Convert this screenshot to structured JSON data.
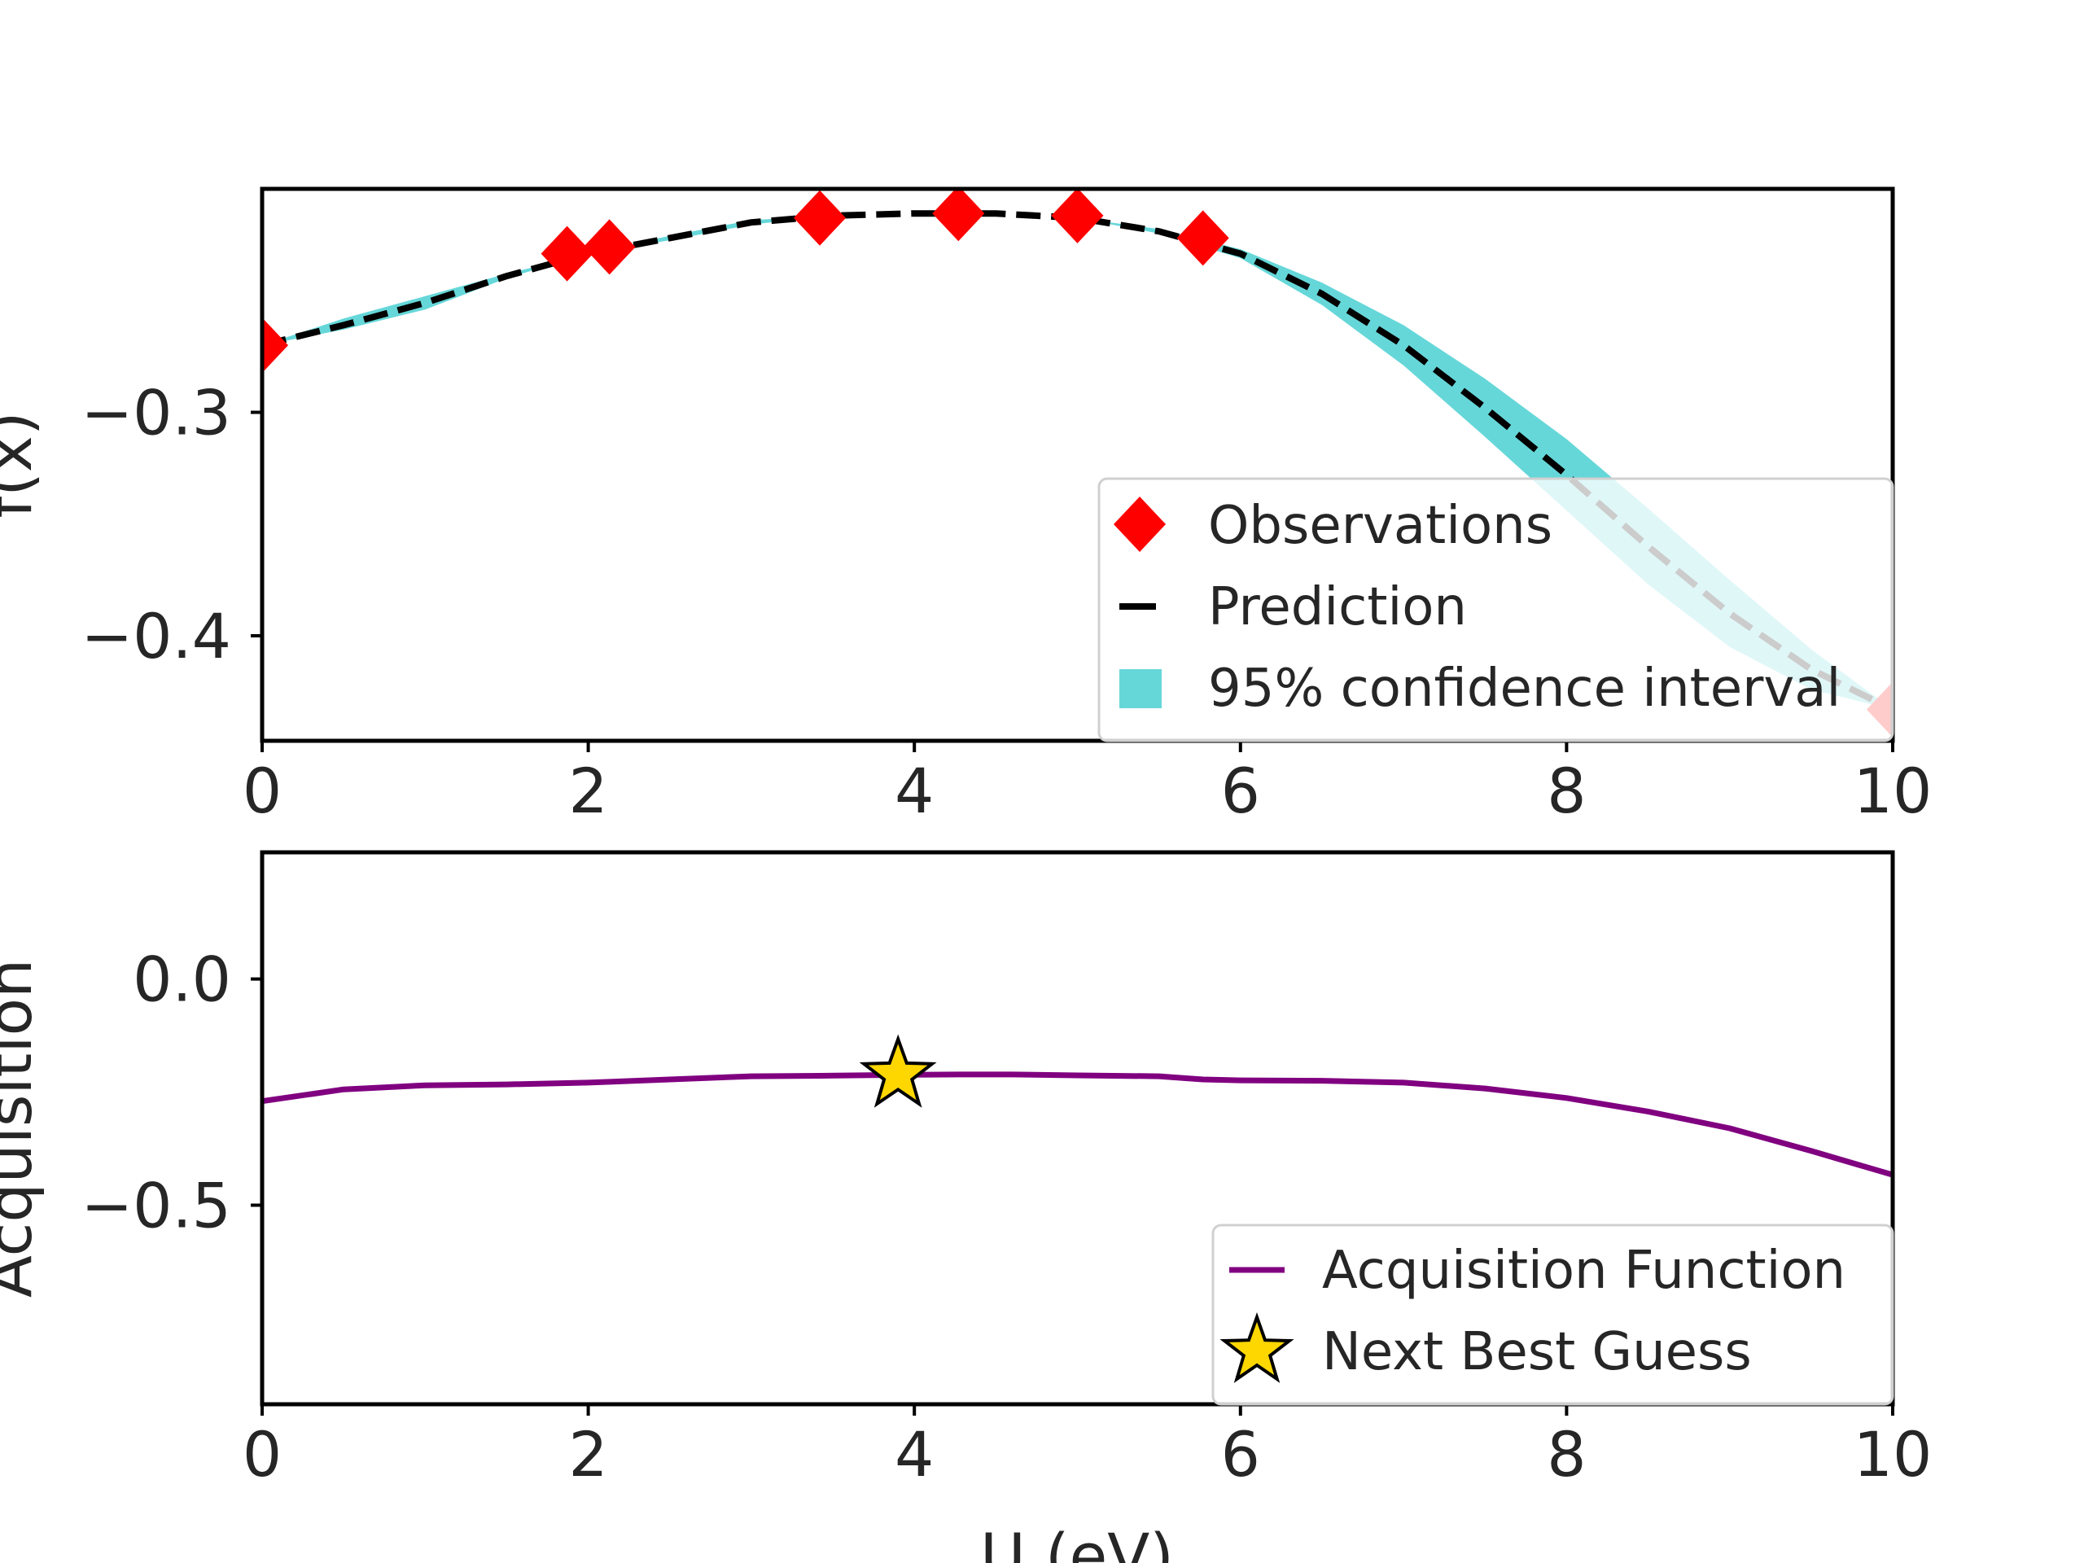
{
  "chart_data": [
    {
      "type": "line",
      "panel": "top",
      "ylabel": "f(x)",
      "xlim": [
        0,
        10
      ],
      "ylim": [
        -0.447,
        -0.2
      ],
      "xticks": [
        {
          "value": 0,
          "label": "0"
        },
        {
          "value": 2,
          "label": "2"
        },
        {
          "value": 4,
          "label": "4"
        },
        {
          "value": 6,
          "label": "6"
        },
        {
          "value": 8,
          "label": "8"
        },
        {
          "value": 10,
          "label": "10"
        }
      ],
      "yticks": [
        {
          "value": -0.3,
          "label": "−0.3"
        },
        {
          "value": -0.4,
          "label": "−0.4"
        }
      ],
      "legend_position": "lower right",
      "legend": [
        {
          "label": "Observations",
          "color": "#ff0000",
          "marker": "diamond"
        },
        {
          "label": "Prediction",
          "color": "#000000",
          "marker": "dashed-line"
        },
        {
          "label": "95% confidence interval",
          "color": "#66d7d9",
          "marker": "square"
        }
      ],
      "series": [
        {
          "name": "Observations",
          "kind": "scatter",
          "color": "#ff0000",
          "x": [
            0,
            1.87,
            2.13,
            3.42,
            4.27,
            5.0,
            5.77,
            10.0
          ],
          "y": [
            -0.27,
            -0.229,
            -0.226,
            -0.213,
            -0.211,
            -0.212,
            -0.222,
            -0.433
          ]
        },
        {
          "name": "Prediction",
          "kind": "line",
          "color": "#000000",
          "x": [
            0,
            0.5,
            1.0,
            1.5,
            2.0,
            2.5,
            3.0,
            3.5,
            4.0,
            4.5,
            5.0,
            5.5,
            6.0,
            6.5,
            7.0,
            7.5,
            8.0,
            8.5,
            9.0,
            9.5,
            10.0
          ],
          "y": [
            -0.27,
            -0.261,
            -0.251,
            -0.239,
            -0.229,
            -0.222,
            -0.215,
            -0.212,
            -0.211,
            -0.211,
            -0.213,
            -0.219,
            -0.229,
            -0.247,
            -0.27,
            -0.298,
            -0.328,
            -0.36,
            -0.39,
            -0.415,
            -0.433
          ]
        },
        {
          "name": "95% confidence interval",
          "kind": "band",
          "color": "#66d7d9",
          "x": [
            0,
            0.5,
            1.0,
            1.5,
            2.0,
            2.5,
            3.0,
            3.5,
            4.0,
            4.5,
            5.0,
            5.5,
            6.0,
            6.5,
            7.0,
            7.5,
            8.0,
            8.5,
            9.0,
            9.5,
            10.0
          ],
          "lower": [
            -0.27,
            -0.263,
            -0.254,
            -0.24,
            -0.229,
            -0.223,
            -0.216,
            -0.212,
            -0.211,
            -0.211,
            -0.213,
            -0.22,
            -0.231,
            -0.252,
            -0.279,
            -0.311,
            -0.344,
            -0.377,
            -0.405,
            -0.424,
            -0.433
          ],
          "upper": [
            -0.27,
            -0.258,
            -0.248,
            -0.238,
            -0.229,
            -0.221,
            -0.214,
            -0.212,
            -0.211,
            -0.211,
            -0.213,
            -0.218,
            -0.227,
            -0.242,
            -0.261,
            -0.285,
            -0.312,
            -0.343,
            -0.375,
            -0.406,
            -0.433
          ]
        }
      ]
    },
    {
      "type": "line",
      "panel": "bottom",
      "ylabel": "Acquisition",
      "xlabel": "U (eV)",
      "xlim": [
        0,
        10
      ],
      "ylim": [
        -0.94,
        0.28
      ],
      "xticks": [
        {
          "value": 0,
          "label": "0"
        },
        {
          "value": 2,
          "label": "2"
        },
        {
          "value": 4,
          "label": "4"
        },
        {
          "value": 6,
          "label": "6"
        },
        {
          "value": 8,
          "label": "8"
        },
        {
          "value": 10,
          "label": "10"
        }
      ],
      "yticks": [
        {
          "value": 0.0,
          "label": "0.0"
        },
        {
          "value": -0.5,
          "label": "−0.5"
        }
      ],
      "legend_position": "lower right",
      "legend": [
        {
          "label": "Acquisition Function",
          "color": "#800080",
          "marker": "line"
        },
        {
          "label": "Next Best Guess",
          "color": "#ffd700",
          "marker": "star"
        }
      ],
      "series": [
        {
          "name": "Acquisition Function",
          "kind": "line",
          "color": "#800080",
          "x": [
            0,
            0.5,
            1.0,
            1.5,
            2.0,
            2.5,
            3.0,
            3.42,
            3.9,
            4.27,
            4.6,
            5.0,
            5.5,
            5.77,
            6.0,
            6.5,
            7.0,
            7.5,
            8.0,
            8.5,
            9.0,
            9.5,
            10.0
          ],
          "y": [
            -0.27,
            -0.244,
            -0.235,
            -0.233,
            -0.229,
            -0.222,
            -0.215,
            -0.214,
            -0.212,
            -0.211,
            -0.211,
            -0.213,
            -0.215,
            -0.222,
            -0.224,
            -0.225,
            -0.229,
            -0.242,
            -0.263,
            -0.293,
            -0.33,
            -0.38,
            -0.433
          ]
        },
        {
          "name": "Next Best Guess",
          "kind": "scatter",
          "color": "#ffd700",
          "x": [
            3.9
          ],
          "y": [
            -0.212
          ]
        }
      ]
    }
  ]
}
